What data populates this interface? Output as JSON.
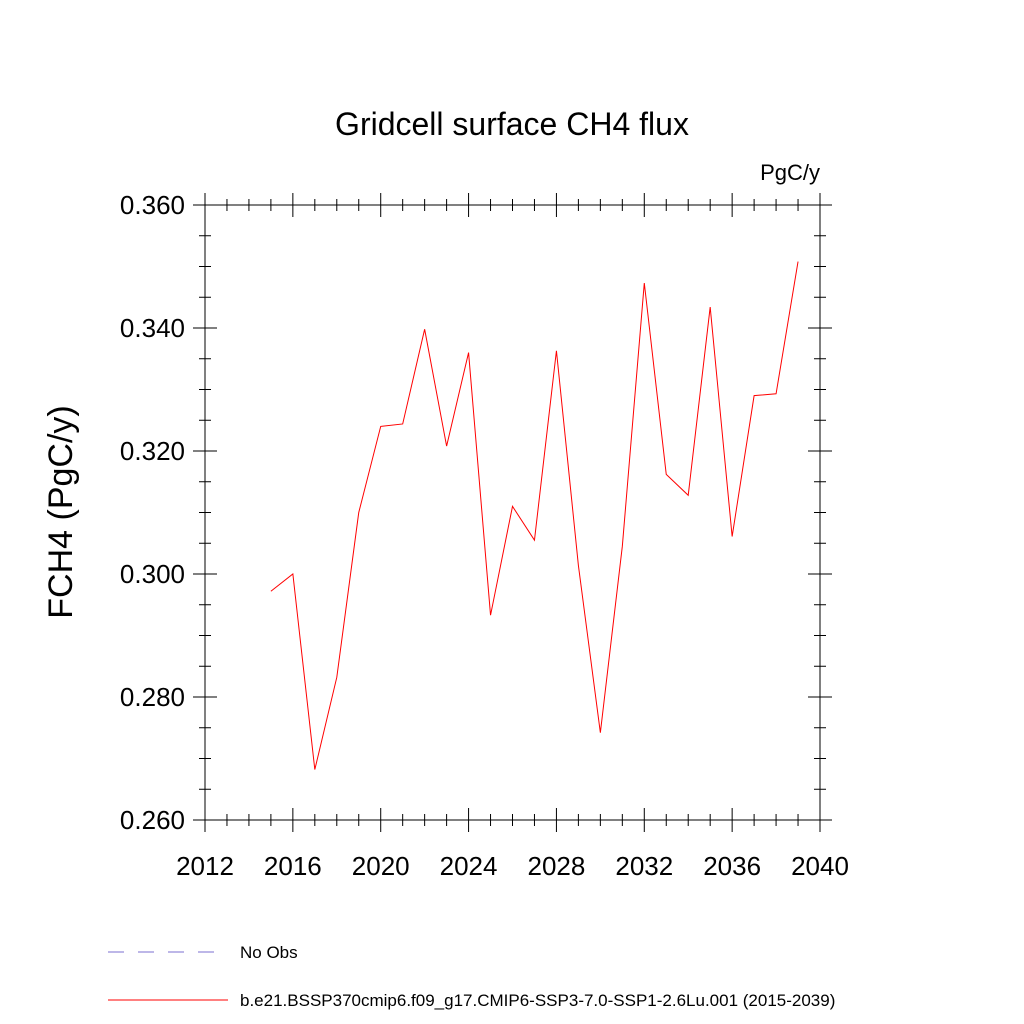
{
  "chart_data": {
    "type": "line",
    "title": "Gridcell surface CH4 flux",
    "units": "PgC/y",
    "ylabel": "FCH4  (PgC/y)",
    "xlabel": "",
    "xlim": [
      2012,
      2040
    ],
    "ylim": [
      0.26,
      0.36
    ],
    "x_ticks": [
      "2012",
      "2016",
      "2020",
      "2024",
      "2028",
      "2032",
      "2036",
      "2040"
    ],
    "y_ticks": [
      "0.260",
      "0.280",
      "0.300",
      "0.320",
      "0.340",
      "0.360"
    ],
    "grid": false,
    "series": [
      {
        "name": "b.e21.BSSP370cmip6.f09_g17.CMIP6-SSP3-7.0-SSP1-2.6Lu.001 (2015-2039)",
        "color": "#ff0000",
        "style": "solid",
        "x": [
          2015,
          2016,
          2017,
          2018,
          2019,
          2020,
          2021,
          2022,
          2023,
          2024,
          2025,
          2026,
          2027,
          2028,
          2029,
          2030,
          2031,
          2032,
          2033,
          2034,
          2035,
          2036,
          2037,
          2038,
          2039
        ],
        "values": [
          0.2972,
          0.3,
          0.2682,
          0.2832,
          0.31,
          0.324,
          0.3244,
          0.3398,
          0.3208,
          0.336,
          0.2933,
          0.311,
          0.3055,
          0.3363,
          0.3014,
          0.2742,
          0.3045,
          0.3473,
          0.3162,
          0.3128,
          0.3434,
          0.3061,
          0.329,
          0.3293,
          0.3508
        ]
      }
    ],
    "legend": {
      "placement": "bottom-left",
      "entries": [
        {
          "label": "No Obs",
          "color": "#7b6fd0",
          "style": "dashed"
        },
        {
          "label": "b.e21.BSSP370cmip6.f09_g17.CMIP6-SSP3-7.0-SSP1-2.6Lu.001 (2015-2039)",
          "color": "#ff0000",
          "style": "solid"
        }
      ]
    }
  }
}
